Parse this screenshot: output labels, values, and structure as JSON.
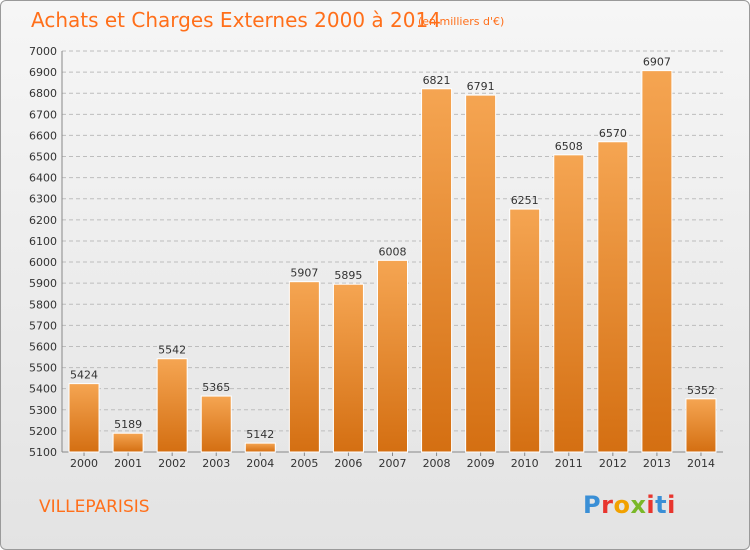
{
  "header": {
    "title": "Achats et Charges Externes 2000 à 2014",
    "subtitle": "(en milliers d'€)"
  },
  "footer": {
    "city": "VILLEPARISIS",
    "brand": "Proxiti",
    "brand_colors": [
      "#3a8fd6",
      "#e8352e",
      "#f2a100",
      "#7ab828",
      "#e8352e",
      "#3a8fd6",
      "#e8352e"
    ]
  },
  "colors": {
    "bar_light": "#f5a552",
    "bar_dark": "#d46f12",
    "accent": "#ff6f1a",
    "grid": "#bdbdbd"
  },
  "chart_data": {
    "type": "bar",
    "title": "Achats et Charges Externes 2000 à 2014",
    "subtitle": "(en milliers d'€)",
    "categories": [
      "2000",
      "2001",
      "2002",
      "2003",
      "2004",
      "2005",
      "2006",
      "2007",
      "2008",
      "2009",
      "2010",
      "2011",
      "2012",
      "2013",
      "2014"
    ],
    "values": [
      5424,
      5189,
      5542,
      5365,
      5142,
      5907,
      5895,
      6008,
      6821,
      6791,
      6251,
      6508,
      6570,
      6907,
      5352
    ],
    "ylim": [
      5100,
      7000
    ],
    "yticks": [
      5100,
      5200,
      5300,
      5400,
      5500,
      5600,
      5700,
      5800,
      5900,
      6000,
      6100,
      6200,
      6300,
      6400,
      6500,
      6600,
      6700,
      6800,
      6900,
      7000
    ],
    "grid": true,
    "data_labels": true
  }
}
